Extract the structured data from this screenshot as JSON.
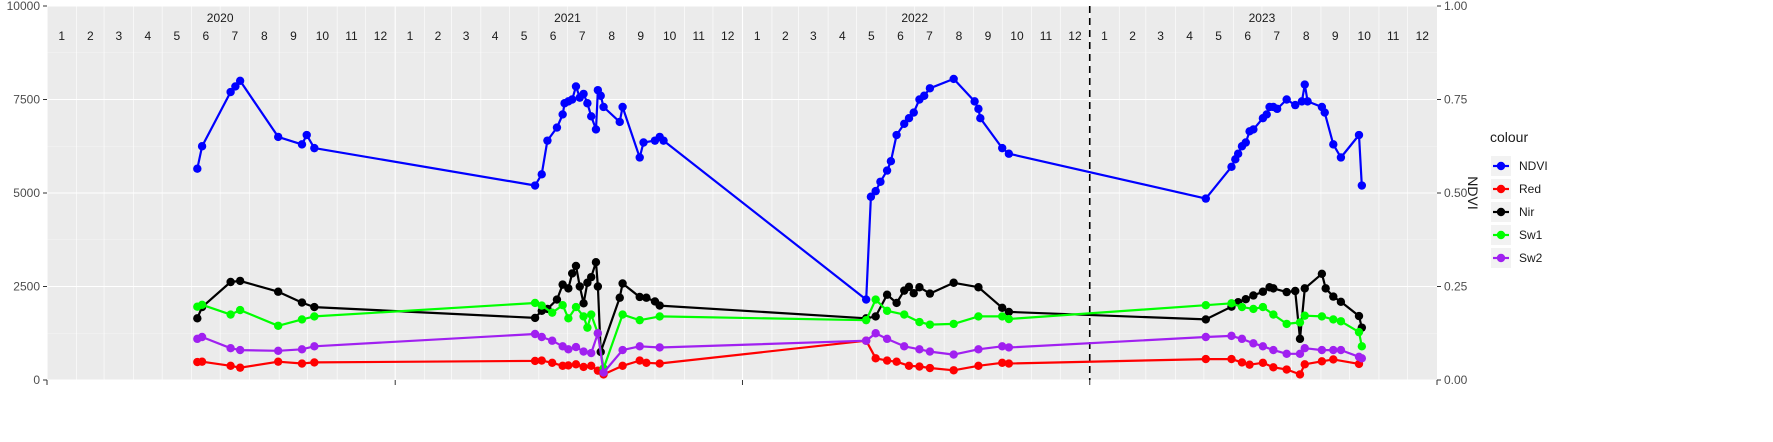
{
  "chart_data": {
    "type": "line",
    "x_start": "2020-01-01",
    "x_end": "2024-01-01",
    "ylim": [
      0,
      10000
    ],
    "y_ticks": [
      0,
      2500,
      5000,
      7500,
      10000
    ],
    "y2_label": "NDVI",
    "y2lim": [
      0,
      1
    ],
    "y2_ticks": [
      "0.00",
      "0.25",
      "0.50",
      "0.75",
      "1.00"
    ],
    "years": [
      {
        "label": "2020",
        "date": "2020-07-01"
      },
      {
        "label": "2021",
        "date": "2021-07-01"
      },
      {
        "label": "2022",
        "date": "2022-07-01"
      },
      {
        "label": "2023",
        "date": "2023-07-01"
      }
    ],
    "month_labels": [
      "1",
      "2",
      "3",
      "4",
      "5",
      "6",
      "7",
      "8",
      "9",
      "10",
      "11",
      "12"
    ],
    "vline_date": "2023-01-01",
    "grid": true,
    "legend": {
      "title": "colour",
      "position": "right"
    },
    "series": [
      {
        "name": "NDVI",
        "color": "#0000FF",
        "axis": "right",
        "points": [
          [
            "2020-06-07",
            0.565
          ],
          [
            "2020-06-12",
            0.625
          ],
          [
            "2020-07-12",
            0.77
          ],
          [
            "2020-07-17",
            0.785
          ],
          [
            "2020-07-22",
            0.8
          ],
          [
            "2020-08-31",
            0.65
          ],
          [
            "2020-09-25",
            0.63
          ],
          [
            "2020-09-30",
            0.655
          ],
          [
            "2020-10-08",
            0.62
          ],
          [
            "2021-05-28",
            0.52
          ],
          [
            "2021-06-04",
            0.55
          ],
          [
            "2021-06-10",
            0.64
          ],
          [
            "2021-06-20",
            0.675
          ],
          [
            "2021-06-26",
            0.71
          ],
          [
            "2021-06-28",
            0.74
          ],
          [
            "2021-07-02",
            0.745
          ],
          [
            "2021-07-06",
            0.75
          ],
          [
            "2021-07-10",
            0.785
          ],
          [
            "2021-07-14",
            0.755
          ],
          [
            "2021-07-18",
            0.765
          ],
          [
            "2021-07-22",
            0.74
          ],
          [
            "2021-07-26",
            0.705
          ],
          [
            "2021-07-31",
            0.67
          ],
          [
            "2021-08-02",
            0.775
          ],
          [
            "2021-08-05",
            0.76
          ],
          [
            "2021-08-08",
            0.73
          ],
          [
            "2021-08-25",
            0.69
          ],
          [
            "2021-08-28",
            0.73
          ],
          [
            "2021-09-15",
            0.595
          ],
          [
            "2021-09-19",
            0.635
          ],
          [
            "2021-10-01",
            0.64
          ],
          [
            "2021-10-06",
            0.65
          ],
          [
            "2021-10-10",
            0.64
          ],
          [
            "2022-05-11",
            0.215
          ],
          [
            "2022-05-16",
            0.49
          ],
          [
            "2022-05-21",
            0.505
          ],
          [
            "2022-05-26",
            0.53
          ],
          [
            "2022-06-02",
            0.56
          ],
          [
            "2022-06-06",
            0.585
          ],
          [
            "2022-06-12",
            0.655
          ],
          [
            "2022-06-20",
            0.685
          ],
          [
            "2022-06-25",
            0.7
          ],
          [
            "2022-06-30",
            0.715
          ],
          [
            "2022-07-06",
            0.75
          ],
          [
            "2022-07-11",
            0.76
          ],
          [
            "2022-07-17",
            0.78
          ],
          [
            "2022-08-11",
            0.805
          ],
          [
            "2022-09-02",
            0.745
          ],
          [
            "2022-09-06",
            0.725
          ],
          [
            "2022-09-08",
            0.7
          ],
          [
            "2022-10-01",
            0.62
          ],
          [
            "2022-10-08",
            0.605
          ],
          [
            "2023-05-03",
            0.485
          ],
          [
            "2023-05-30",
            0.57
          ],
          [
            "2023-06-03",
            0.59
          ],
          [
            "2023-06-06",
            0.605
          ],
          [
            "2023-06-10",
            0.625
          ],
          [
            "2023-06-14",
            0.635
          ],
          [
            "2023-06-18",
            0.665
          ],
          [
            "2023-06-22",
            0.67
          ],
          [
            "2023-07-02",
            0.7
          ],
          [
            "2023-07-06",
            0.71
          ],
          [
            "2023-07-09",
            0.73
          ],
          [
            "2023-07-13",
            0.73
          ],
          [
            "2023-07-17",
            0.725
          ],
          [
            "2023-07-27",
            0.75
          ],
          [
            "2023-08-05",
            0.735
          ],
          [
            "2023-08-12",
            0.745
          ],
          [
            "2023-08-15",
            0.79
          ],
          [
            "2023-08-18",
            0.745
          ],
          [
            "2023-09-02",
            0.73
          ],
          [
            "2023-09-05",
            0.715
          ],
          [
            "2023-09-14",
            0.63
          ],
          [
            "2023-09-22",
            0.595
          ],
          [
            "2023-10-11",
            0.655
          ],
          [
            "2023-10-14",
            0.52
          ]
        ]
      },
      {
        "name": "Red",
        "color": "#FF0000",
        "axis": "left",
        "points": [
          [
            "2020-06-07",
            480
          ],
          [
            "2020-06-12",
            490
          ],
          [
            "2020-07-12",
            380
          ],
          [
            "2020-07-22",
            330
          ],
          [
            "2020-08-31",
            490
          ],
          [
            "2020-09-25",
            440
          ],
          [
            "2020-10-08",
            470
          ],
          [
            "2021-05-28",
            510
          ],
          [
            "2021-06-04",
            520
          ],
          [
            "2021-06-15",
            460
          ],
          [
            "2021-06-26",
            380
          ],
          [
            "2021-07-02",
            390
          ],
          [
            "2021-07-10",
            420
          ],
          [
            "2021-07-18",
            350
          ],
          [
            "2021-07-26",
            380
          ],
          [
            "2021-08-02",
            250
          ],
          [
            "2021-08-08",
            150
          ],
          [
            "2021-08-28",
            380
          ],
          [
            "2021-09-15",
            520
          ],
          [
            "2021-09-22",
            460
          ],
          [
            "2021-10-06",
            440
          ],
          [
            "2022-05-11",
            1050
          ],
          [
            "2022-05-21",
            580
          ],
          [
            "2022-06-02",
            520
          ],
          [
            "2022-06-12",
            490
          ],
          [
            "2022-06-25",
            380
          ],
          [
            "2022-07-06",
            360
          ],
          [
            "2022-07-17",
            320
          ],
          [
            "2022-08-11",
            260
          ],
          [
            "2022-09-06",
            380
          ],
          [
            "2022-10-01",
            460
          ],
          [
            "2022-10-08",
            440
          ],
          [
            "2023-05-03",
            560
          ],
          [
            "2023-05-30",
            560
          ],
          [
            "2023-06-10",
            470
          ],
          [
            "2023-06-18",
            410
          ],
          [
            "2023-07-02",
            460
          ],
          [
            "2023-07-13",
            340
          ],
          [
            "2023-07-27",
            280
          ],
          [
            "2023-08-10",
            150
          ],
          [
            "2023-08-15",
            420
          ],
          [
            "2023-09-02",
            500
          ],
          [
            "2023-09-14",
            550
          ],
          [
            "2023-10-11",
            430
          ]
        ]
      },
      {
        "name": "Nir",
        "color": "#000000",
        "axis": "left",
        "points": [
          [
            "2020-06-07",
            1650
          ],
          [
            "2020-06-12",
            1950
          ],
          [
            "2020-07-12",
            2620
          ],
          [
            "2020-07-22",
            2650
          ],
          [
            "2020-08-31",
            2360
          ],
          [
            "2020-09-25",
            2070
          ],
          [
            "2020-10-08",
            1950
          ],
          [
            "2021-05-28",
            1660
          ],
          [
            "2021-06-04",
            1850
          ],
          [
            "2021-06-10",
            1900
          ],
          [
            "2021-06-20",
            2150
          ],
          [
            "2021-06-26",
            2550
          ],
          [
            "2021-07-02",
            2450
          ],
          [
            "2021-07-06",
            2850
          ],
          [
            "2021-07-10",
            3050
          ],
          [
            "2021-07-14",
            2500
          ],
          [
            "2021-07-18",
            2050
          ],
          [
            "2021-07-22",
            2600
          ],
          [
            "2021-07-26",
            2750
          ],
          [
            "2021-07-31",
            3150
          ],
          [
            "2021-08-02",
            2500
          ],
          [
            "2021-08-05",
            750
          ],
          [
            "2021-08-25",
            2200
          ],
          [
            "2021-08-28",
            2580
          ],
          [
            "2021-09-15",
            2220
          ],
          [
            "2021-09-22",
            2200
          ],
          [
            "2021-10-01",
            2100
          ],
          [
            "2021-10-06",
            1990
          ],
          [
            "2022-05-11",
            1650
          ],
          [
            "2022-05-21",
            1700
          ],
          [
            "2022-06-02",
            2280
          ],
          [
            "2022-06-12",
            2060
          ],
          [
            "2022-06-20",
            2390
          ],
          [
            "2022-06-25",
            2490
          ],
          [
            "2022-06-30",
            2320
          ],
          [
            "2022-07-06",
            2480
          ],
          [
            "2022-07-17",
            2310
          ],
          [
            "2022-08-11",
            2600
          ],
          [
            "2022-09-06",
            2480
          ],
          [
            "2022-10-01",
            1930
          ],
          [
            "2022-10-08",
            1820
          ],
          [
            "2023-05-03",
            1620
          ],
          [
            "2023-05-30",
            1960
          ],
          [
            "2023-06-06",
            2080
          ],
          [
            "2023-06-14",
            2160
          ],
          [
            "2023-06-22",
            2260
          ],
          [
            "2023-07-02",
            2360
          ],
          [
            "2023-07-09",
            2480
          ],
          [
            "2023-07-13",
            2450
          ],
          [
            "2023-07-27",
            2350
          ],
          [
            "2023-08-05",
            2380
          ],
          [
            "2023-08-10",
            1100
          ],
          [
            "2023-08-15",
            2450
          ],
          [
            "2023-09-02",
            2840
          ],
          [
            "2023-09-06",
            2450
          ],
          [
            "2023-09-14",
            2230
          ],
          [
            "2023-09-22",
            2090
          ],
          [
            "2023-10-11",
            1710
          ],
          [
            "2023-10-14",
            1400
          ]
        ]
      },
      {
        "name": "Sw1",
        "color": "#00FF00",
        "axis": "left",
        "points": [
          [
            "2020-06-07",
            1960
          ],
          [
            "2020-06-12",
            2010
          ],
          [
            "2020-07-12",
            1750
          ],
          [
            "2020-07-22",
            1870
          ],
          [
            "2020-08-31",
            1450
          ],
          [
            "2020-09-25",
            1620
          ],
          [
            "2020-10-08",
            1700
          ],
          [
            "2021-05-28",
            2060
          ],
          [
            "2021-06-04",
            1990
          ],
          [
            "2021-06-15",
            1800
          ],
          [
            "2021-06-26",
            2000
          ],
          [
            "2021-07-02",
            1650
          ],
          [
            "2021-07-10",
            1950
          ],
          [
            "2021-07-18",
            1700
          ],
          [
            "2021-07-22",
            1400
          ],
          [
            "2021-07-26",
            1750
          ],
          [
            "2021-08-02",
            1250
          ],
          [
            "2021-08-08",
            310
          ],
          [
            "2021-08-28",
            1750
          ],
          [
            "2021-09-15",
            1600
          ],
          [
            "2021-10-06",
            1700
          ],
          [
            "2022-05-11",
            1600
          ],
          [
            "2022-05-21",
            2150
          ],
          [
            "2022-06-02",
            1850
          ],
          [
            "2022-06-20",
            1750
          ],
          [
            "2022-07-06",
            1550
          ],
          [
            "2022-07-17",
            1480
          ],
          [
            "2022-08-11",
            1500
          ],
          [
            "2022-09-06",
            1700
          ],
          [
            "2022-10-01",
            1700
          ],
          [
            "2022-10-08",
            1630
          ],
          [
            "2023-05-03",
            2000
          ],
          [
            "2023-05-30",
            2050
          ],
          [
            "2023-06-10",
            1950
          ],
          [
            "2023-06-22",
            1900
          ],
          [
            "2023-07-02",
            1950
          ],
          [
            "2023-07-13",
            1750
          ],
          [
            "2023-07-27",
            1500
          ],
          [
            "2023-08-10",
            1540
          ],
          [
            "2023-08-15",
            1720
          ],
          [
            "2023-09-02",
            1700
          ],
          [
            "2023-09-14",
            1620
          ],
          [
            "2023-09-22",
            1570
          ],
          [
            "2023-10-11",
            1280
          ],
          [
            "2023-10-14",
            900
          ]
        ]
      },
      {
        "name": "Sw2",
        "color": "#A020F0",
        "axis": "left",
        "points": [
          [
            "2020-06-07",
            1100
          ],
          [
            "2020-06-12",
            1150
          ],
          [
            "2020-07-12",
            850
          ],
          [
            "2020-07-22",
            800
          ],
          [
            "2020-08-31",
            780
          ],
          [
            "2020-09-25",
            820
          ],
          [
            "2020-10-08",
            900
          ],
          [
            "2021-05-28",
            1230
          ],
          [
            "2021-06-04",
            1150
          ],
          [
            "2021-06-15",
            1050
          ],
          [
            "2021-06-26",
            900
          ],
          [
            "2021-07-02",
            820
          ],
          [
            "2021-07-10",
            880
          ],
          [
            "2021-07-18",
            760
          ],
          [
            "2021-07-26",
            720
          ],
          [
            "2021-08-02",
            1250
          ],
          [
            "2021-08-08",
            200
          ],
          [
            "2021-08-28",
            800
          ],
          [
            "2021-09-15",
            900
          ],
          [
            "2021-10-06",
            870
          ],
          [
            "2022-05-11",
            1050
          ],
          [
            "2022-05-21",
            1250
          ],
          [
            "2022-06-02",
            1100
          ],
          [
            "2022-06-20",
            900
          ],
          [
            "2022-07-06",
            820
          ],
          [
            "2022-07-17",
            760
          ],
          [
            "2022-08-11",
            680
          ],
          [
            "2022-09-06",
            820
          ],
          [
            "2022-10-01",
            900
          ],
          [
            "2022-10-08",
            870
          ],
          [
            "2023-05-03",
            1150
          ],
          [
            "2023-05-30",
            1180
          ],
          [
            "2023-06-10",
            1100
          ],
          [
            "2023-06-22",
            980
          ],
          [
            "2023-07-02",
            900
          ],
          [
            "2023-07-13",
            800
          ],
          [
            "2023-07-27",
            700
          ],
          [
            "2023-08-10",
            700
          ],
          [
            "2023-08-15",
            850
          ],
          [
            "2023-09-02",
            800
          ],
          [
            "2023-09-14",
            800
          ],
          [
            "2023-09-22",
            800
          ],
          [
            "2023-10-11",
            620
          ],
          [
            "2023-10-14",
            580
          ]
        ]
      }
    ]
  }
}
